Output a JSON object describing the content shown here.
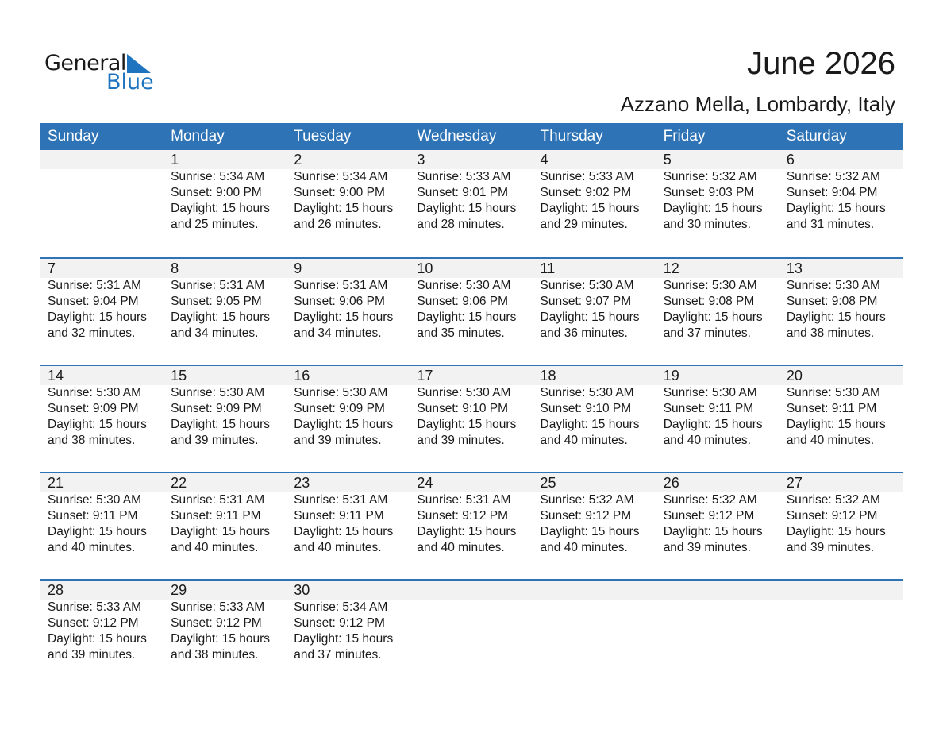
{
  "logo": {
    "text_general": "General",
    "text_blue": "Blue"
  },
  "title": "June 2026",
  "location": "Azzano Mella, Lombardy, Italy",
  "colors": {
    "header": "#2e73b5",
    "accent": "#1f74bf"
  },
  "weekdays": [
    "Sunday",
    "Monday",
    "Tuesday",
    "Wednesday",
    "Thursday",
    "Friday",
    "Saturday"
  ],
  "first_weekday_index": 1,
  "days": [
    {
      "day": "1",
      "sunrise": "Sunrise: 5:34 AM",
      "sunset": "Sunset: 9:00 PM",
      "daylight": "Daylight: 15 hours",
      "minutes": "and 25 minutes."
    },
    {
      "day": "2",
      "sunrise": "Sunrise: 5:34 AM",
      "sunset": "Sunset: 9:00 PM",
      "daylight": "Daylight: 15 hours",
      "minutes": "and 26 minutes."
    },
    {
      "day": "3",
      "sunrise": "Sunrise: 5:33 AM",
      "sunset": "Sunset: 9:01 PM",
      "daylight": "Daylight: 15 hours",
      "minutes": "and 28 minutes."
    },
    {
      "day": "4",
      "sunrise": "Sunrise: 5:33 AM",
      "sunset": "Sunset: 9:02 PM",
      "daylight": "Daylight: 15 hours",
      "minutes": "and 29 minutes."
    },
    {
      "day": "5",
      "sunrise": "Sunrise: 5:32 AM",
      "sunset": "Sunset: 9:03 PM",
      "daylight": "Daylight: 15 hours",
      "minutes": "and 30 minutes."
    },
    {
      "day": "6",
      "sunrise": "Sunrise: 5:32 AM",
      "sunset": "Sunset: 9:04 PM",
      "daylight": "Daylight: 15 hours",
      "minutes": "and 31 minutes."
    },
    {
      "day": "7",
      "sunrise": "Sunrise: 5:31 AM",
      "sunset": "Sunset: 9:04 PM",
      "daylight": "Daylight: 15 hours",
      "minutes": "and 32 minutes."
    },
    {
      "day": "8",
      "sunrise": "Sunrise: 5:31 AM",
      "sunset": "Sunset: 9:05 PM",
      "daylight": "Daylight: 15 hours",
      "minutes": "and 34 minutes."
    },
    {
      "day": "9",
      "sunrise": "Sunrise: 5:31 AM",
      "sunset": "Sunset: 9:06 PM",
      "daylight": "Daylight: 15 hours",
      "minutes": "and 34 minutes."
    },
    {
      "day": "10",
      "sunrise": "Sunrise: 5:30 AM",
      "sunset": "Sunset: 9:06 PM",
      "daylight": "Daylight: 15 hours",
      "minutes": "and 35 minutes."
    },
    {
      "day": "11",
      "sunrise": "Sunrise: 5:30 AM",
      "sunset": "Sunset: 9:07 PM",
      "daylight": "Daylight: 15 hours",
      "minutes": "and 36 minutes."
    },
    {
      "day": "12",
      "sunrise": "Sunrise: 5:30 AM",
      "sunset": "Sunset: 9:08 PM",
      "daylight": "Daylight: 15 hours",
      "minutes": "and 37 minutes."
    },
    {
      "day": "13",
      "sunrise": "Sunrise: 5:30 AM",
      "sunset": "Sunset: 9:08 PM",
      "daylight": "Daylight: 15 hours",
      "minutes": "and 38 minutes."
    },
    {
      "day": "14",
      "sunrise": "Sunrise: 5:30 AM",
      "sunset": "Sunset: 9:09 PM",
      "daylight": "Daylight: 15 hours",
      "minutes": "and 38 minutes."
    },
    {
      "day": "15",
      "sunrise": "Sunrise: 5:30 AM",
      "sunset": "Sunset: 9:09 PM",
      "daylight": "Daylight: 15 hours",
      "minutes": "and 39 minutes."
    },
    {
      "day": "16",
      "sunrise": "Sunrise: 5:30 AM",
      "sunset": "Sunset: 9:09 PM",
      "daylight": "Daylight: 15 hours",
      "minutes": "and 39 minutes."
    },
    {
      "day": "17",
      "sunrise": "Sunrise: 5:30 AM",
      "sunset": "Sunset: 9:10 PM",
      "daylight": "Daylight: 15 hours",
      "minutes": "and 39 minutes."
    },
    {
      "day": "18",
      "sunrise": "Sunrise: 5:30 AM",
      "sunset": "Sunset: 9:10 PM",
      "daylight": "Daylight: 15 hours",
      "minutes": "and 40 minutes."
    },
    {
      "day": "19",
      "sunrise": "Sunrise: 5:30 AM",
      "sunset": "Sunset: 9:11 PM",
      "daylight": "Daylight: 15 hours",
      "minutes": "and 40 minutes."
    },
    {
      "day": "20",
      "sunrise": "Sunrise: 5:30 AM",
      "sunset": "Sunset: 9:11 PM",
      "daylight": "Daylight: 15 hours",
      "minutes": "and 40 minutes."
    },
    {
      "day": "21",
      "sunrise": "Sunrise: 5:30 AM",
      "sunset": "Sunset: 9:11 PM",
      "daylight": "Daylight: 15 hours",
      "minutes": "and 40 minutes."
    },
    {
      "day": "22",
      "sunrise": "Sunrise: 5:31 AM",
      "sunset": "Sunset: 9:11 PM",
      "daylight": "Daylight: 15 hours",
      "minutes": "and 40 minutes."
    },
    {
      "day": "23",
      "sunrise": "Sunrise: 5:31 AM",
      "sunset": "Sunset: 9:11 PM",
      "daylight": "Daylight: 15 hours",
      "minutes": "and 40 minutes."
    },
    {
      "day": "24",
      "sunrise": "Sunrise: 5:31 AM",
      "sunset": "Sunset: 9:12 PM",
      "daylight": "Daylight: 15 hours",
      "minutes": "and 40 minutes."
    },
    {
      "day": "25",
      "sunrise": "Sunrise: 5:32 AM",
      "sunset": "Sunset: 9:12 PM",
      "daylight": "Daylight: 15 hours",
      "minutes": "and 40 minutes."
    },
    {
      "day": "26",
      "sunrise": "Sunrise: 5:32 AM",
      "sunset": "Sunset: 9:12 PM",
      "daylight": "Daylight: 15 hours",
      "minutes": "and 39 minutes."
    },
    {
      "day": "27",
      "sunrise": "Sunrise: 5:32 AM",
      "sunset": "Sunset: 9:12 PM",
      "daylight": "Daylight: 15 hours",
      "minutes": "and 39 minutes."
    },
    {
      "day": "28",
      "sunrise": "Sunrise: 5:33 AM",
      "sunset": "Sunset: 9:12 PM",
      "daylight": "Daylight: 15 hours",
      "minutes": "and 39 minutes."
    },
    {
      "day": "29",
      "sunrise": "Sunrise: 5:33 AM",
      "sunset": "Sunset: 9:12 PM",
      "daylight": "Daylight: 15 hours",
      "minutes": "and 38 minutes."
    },
    {
      "day": "30",
      "sunrise": "Sunrise: 5:34 AM",
      "sunset": "Sunset: 9:12 PM",
      "daylight": "Daylight: 15 hours",
      "minutes": "and 37 minutes."
    }
  ]
}
